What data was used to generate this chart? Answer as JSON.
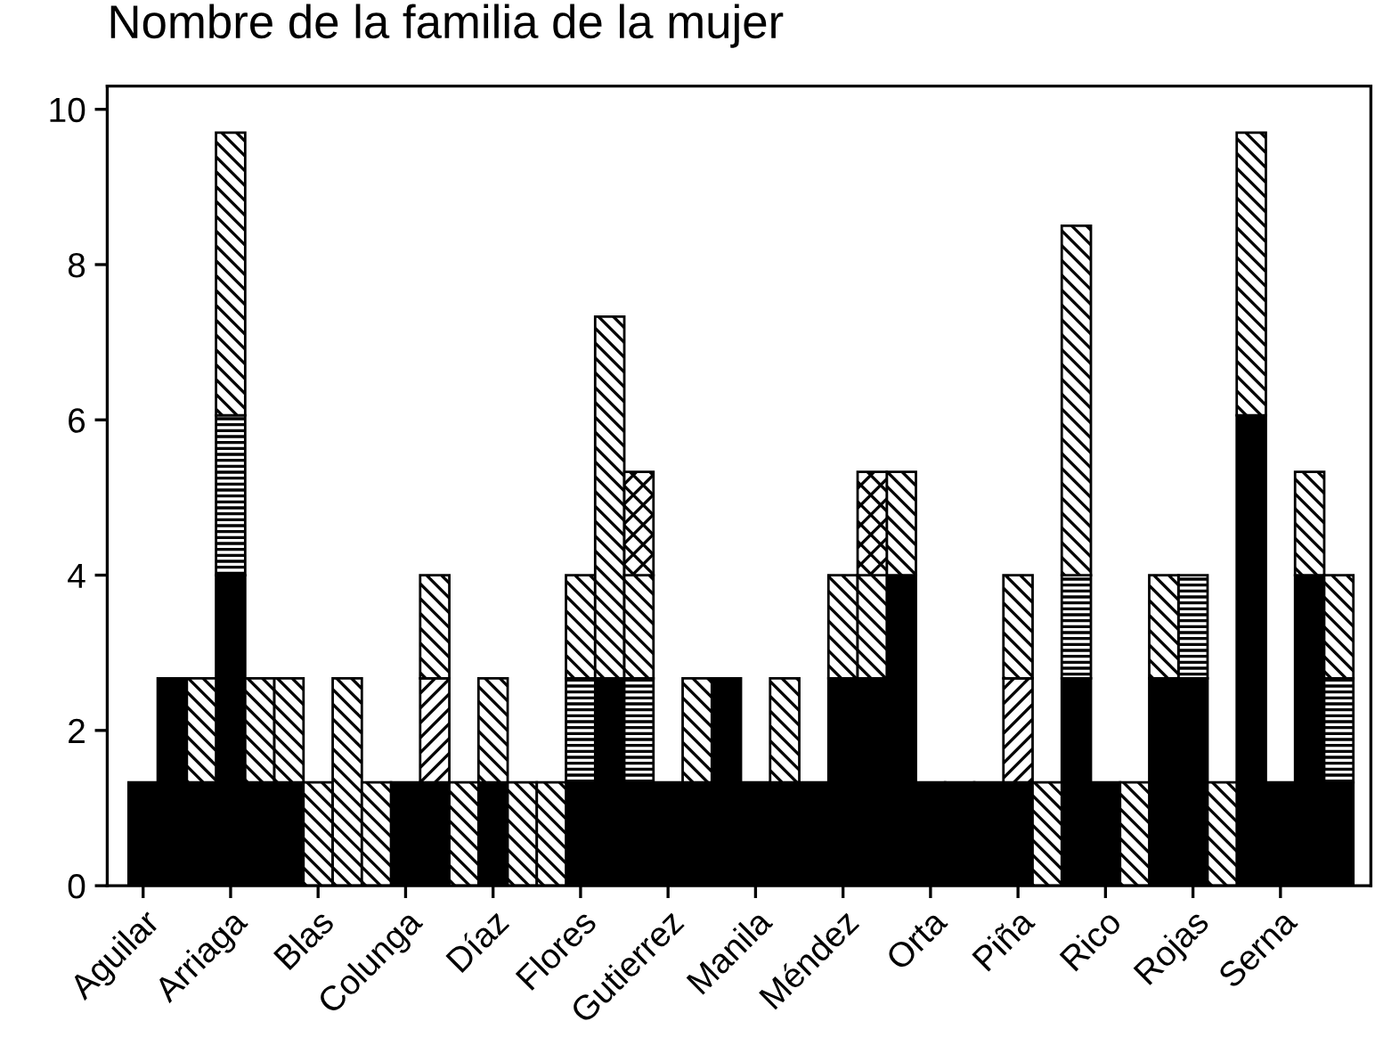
{
  "chart_data": {
    "type": "bar",
    "title": "Nombre de la familia de la mujer",
    "stacked": true,
    "grid": false,
    "legend": false,
    "categories": [
      "Aguilar",
      null,
      null,
      "Arriaga",
      null,
      null,
      "Blas",
      null,
      null,
      "Colunga",
      null,
      null,
      "Díaz",
      null,
      null,
      "Flores",
      null,
      null,
      "Gutierrez",
      null,
      null,
      "Manila",
      null,
      null,
      "Méndez",
      null,
      null,
      "Orta",
      null,
      null,
      "Piña",
      null,
      null,
      "Rico",
      null,
      null,
      "Rojas",
      null,
      null,
      "Serna",
      null,
      null
    ],
    "ylim": [
      0,
      10.3
    ],
    "yticks": [
      0,
      2,
      4,
      6,
      8,
      10
    ],
    "series": [
      {
        "color": "#000000",
        "values": [
          1.33,
          2.67,
          1.33,
          4,
          1.33,
          1.33,
          null,
          null,
          null,
          1.33,
          1.33,
          null,
          1.33,
          null,
          null,
          1.33,
          2.67,
          1.33,
          1.33,
          1.33,
          2.67,
          1.33,
          1.33,
          1.33,
          2.67,
          2.67,
          4,
          1.33,
          1.33,
          1.33,
          1.33,
          null,
          2.67,
          1.33,
          null,
          2.67,
          2.67,
          null,
          6.06,
          1.33,
          4,
          1.33
        ]
      },
      {
        "color": "#000000",
        "values": [
          null,
          null,
          null,
          2.06,
          null,
          null,
          null,
          null,
          null,
          null,
          null,
          null,
          null,
          null,
          null,
          1.34,
          null,
          1.34,
          null,
          null,
          null,
          null,
          null,
          null,
          null,
          null,
          null,
          null,
          null,
          null,
          null,
          null,
          1.33,
          null,
          null,
          null,
          1.33,
          null,
          null,
          null,
          null,
          1.34
        ]
      },
      {
        "color": "#000000",
        "values": [
          null,
          null,
          null,
          null,
          null,
          null,
          null,
          null,
          null,
          null,
          1.34,
          null,
          null,
          null,
          null,
          null,
          null,
          null,
          null,
          null,
          null,
          null,
          null,
          null,
          null,
          null,
          null,
          null,
          null,
          null,
          1.34,
          null,
          null,
          null,
          null,
          null,
          null,
          null,
          null,
          null,
          null,
          null
        ]
      },
      {
        "color": "#000000",
        "values": [
          null,
          null,
          1.34,
          3.64,
          1.34,
          1.34,
          1.33,
          2.67,
          1.33,
          null,
          1.33,
          1.33,
          1.34,
          1.33,
          1.33,
          1.33,
          4.66,
          1.33,
          null,
          1.34,
          null,
          null,
          1.34,
          null,
          1.33,
          1.33,
          1.33,
          null,
          null,
          null,
          1.33,
          1.33,
          4.5,
          null,
          1.33,
          1.33,
          null,
          1.33,
          3.64,
          null,
          1.33,
          1.33
        ]
      },
      {
        "color": "#000000",
        "values": [
          null,
          null,
          null,
          null,
          null,
          null,
          null,
          null,
          null,
          null,
          null,
          null,
          null,
          null,
          null,
          null,
          null,
          1.33,
          null,
          null,
          null,
          null,
          null,
          null,
          null,
          1.33,
          null,
          null,
          null,
          null,
          null,
          null,
          null,
          null,
          null,
          null,
          null,
          null,
          null,
          null,
          null,
          null
        ]
      }
    ]
  }
}
